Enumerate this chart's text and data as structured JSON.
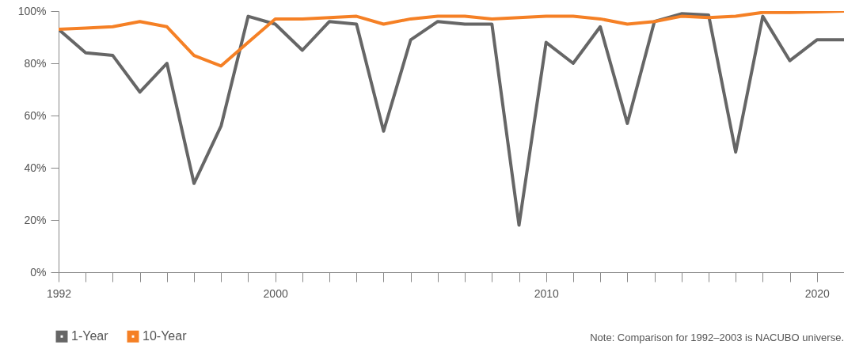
{
  "chart_data": {
    "type": "line",
    "x": [
      1992,
      1993,
      1994,
      1995,
      1996,
      1997,
      1998,
      1999,
      2000,
      2001,
      2002,
      2003,
      2004,
      2005,
      2006,
      2007,
      2008,
      2009,
      2010,
      2011,
      2012,
      2013,
      2014,
      2015,
      2016,
      2017,
      2018,
      2019,
      2020,
      2021
    ],
    "series": [
      {
        "name": "1-Year",
        "color": "#666666",
        "values": [
          93,
          84,
          83,
          69,
          80,
          34,
          56,
          98,
          95,
          85,
          96,
          95,
          54,
          89,
          96,
          95,
          95,
          18,
          88,
          80,
          94,
          57,
          96,
          99,
          98.5,
          46,
          98,
          81,
          89,
          89
        ]
      },
      {
        "name": "10-Year",
        "color": "#f58025",
        "values": [
          93,
          93.5,
          94,
          96,
          94,
          83,
          79,
          88,
          97,
          97,
          97.5,
          98,
          95,
          97,
          98,
          98,
          97,
          97.5,
          98,
          98,
          97,
          95,
          96,
          98,
          97.5,
          98,
          99.5,
          99.5,
          99.7,
          100
        ]
      }
    ],
    "xlim": [
      1992,
      2021
    ],
    "xticks": [
      1992,
      {
        "value": 1993,
        "label": null
      },
      {
        "value": 1994,
        "label": null
      },
      {
        "value": 1995,
        "label": null
      },
      {
        "value": 1996,
        "label": null
      },
      {
        "value": 1997,
        "label": null
      },
      {
        "value": 1998,
        "label": null
      },
      {
        "value": 1999,
        "label": null
      },
      2000,
      {
        "value": 2001,
        "label": null
      },
      {
        "value": 2002,
        "label": null
      },
      {
        "value": 2003,
        "label": null
      },
      {
        "value": 2004,
        "label": null
      },
      {
        "value": 2005,
        "label": null
      },
      {
        "value": 2006,
        "label": null
      },
      {
        "value": 2007,
        "label": null
      },
      {
        "value": 2008,
        "label": null
      },
      {
        "value": 2009,
        "label": null
      },
      2010,
      {
        "value": 2011,
        "label": null
      },
      {
        "value": 2012,
        "label": null
      },
      {
        "value": 2013,
        "label": null
      },
      {
        "value": 2014,
        "label": null
      },
      {
        "value": 2015,
        "label": null
      },
      {
        "value": 2016,
        "label": null
      },
      {
        "value": 2017,
        "label": null
      },
      {
        "value": 2018,
        "label": null
      },
      {
        "value": 2019,
        "label": null
      },
      2020,
      {
        "value": 2021,
        "label": null
      }
    ],
    "ylim": [
      0,
      100
    ],
    "yticks": [
      {
        "value": 0,
        "label": "0%"
      },
      {
        "value": 20,
        "label": "20%"
      },
      {
        "value": 40,
        "label": "40%"
      },
      {
        "value": 60,
        "label": "60%"
      },
      {
        "value": 80,
        "label": "80%"
      },
      {
        "value": 100,
        "label": "100%"
      }
    ],
    "grid": false,
    "legend": "bottom left",
    "marker": "none",
    "line_style": "solid",
    "annotations": [
      "Note: Comparison for 1992–2003 is NACUBO universe."
    ]
  }
}
